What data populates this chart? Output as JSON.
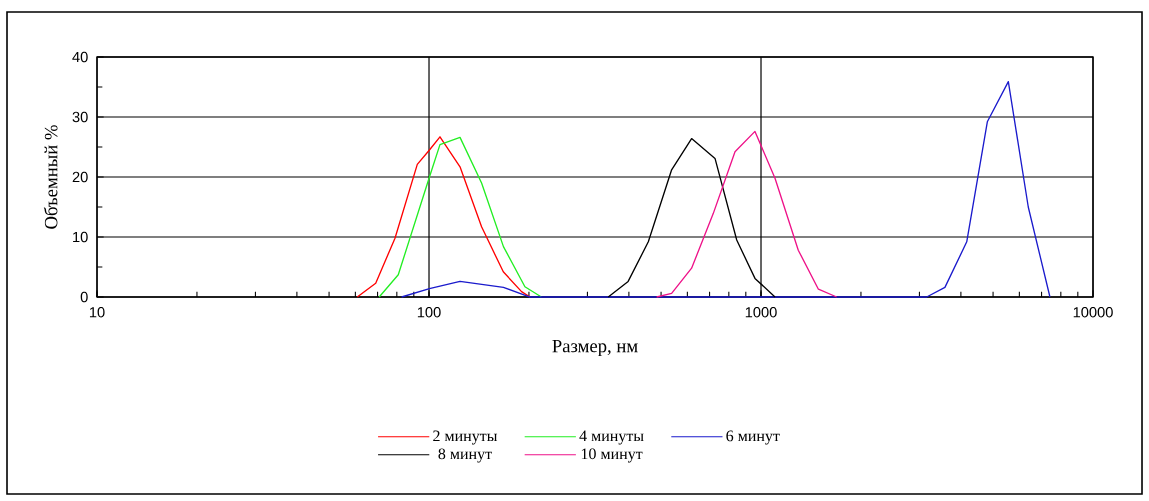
{
  "chart_data": {
    "type": "line",
    "xlabel": "Размер, нм",
    "ylabel": "Объемный %",
    "log": "x",
    "xlim": [
      10,
      10000
    ],
    "ylim": [
      0,
      40
    ],
    "xticks": [
      10,
      100,
      1000,
      10000
    ],
    "yticks": [
      0,
      {
        "value": 5,
        "label": null
      },
      10,
      {
        "value": 15,
        "label": null
      },
      20,
      {
        "value": 25,
        "label": null
      },
      30,
      {
        "value": 35,
        "label": null
      },
      40
    ],
    "grid": true,
    "legend": "bottom",
    "series": [
      {
        "name": "2 минуты",
        "color": "#ff0000",
        "x": [
          60.8,
          69.1,
          79,
          92.2,
          100.3,
          107.9,
          124,
          144,
          167.4,
          190,
          201.5
        ],
        "values": [
          0,
          2.3,
          9.8,
          22.1,
          24.5,
          26.7,
          21.7,
          11.7,
          4.2,
          0.9,
          0
        ]
      },
      {
        "name": "4 минуты",
        "color": "#22ee22",
        "x": [
          70.8,
          80.8,
          100.3,
          107.9,
          124,
          144,
          167.6,
          194.5,
          218
        ],
        "values": [
          0,
          3.7,
          20,
          25.4,
          26.6,
          19,
          8.4,
          1.7,
          0
        ]
      },
      {
        "name": "6 минут",
        "color": "#1a1acc",
        "x": [
          82.7,
          100.3,
          124,
          167.6,
          201.5,
          3155,
          3581,
          4166,
          4805,
          5559,
          6383,
          7419
        ],
        "values": [
          0,
          1.4,
          2.6,
          1.6,
          0,
          0,
          1.6,
          9.2,
          29.2,
          35.9,
          15,
          0
        ]
      },
      {
        "name": "8 минут",
        "color": "#000000",
        "x": [
          346.7,
          398,
          457.7,
          538,
          618,
          727,
          845,
          959,
          1102
        ],
        "values": [
          0,
          2.6,
          9.2,
          21.2,
          26.4,
          23.1,
          9.5,
          3.1,
          0
        ]
      },
      {
        "name": "10 минут",
        "color": "#ee1188",
        "x": [
          485,
          538,
          618,
          718,
          835,
          959,
          1102,
          1295,
          1489,
          1690
        ],
        "values": [
          0,
          0.6,
          4.8,
          13.9,
          24.2,
          27.6,
          19.8,
          7.8,
          1.3,
          0
        ]
      }
    ]
  }
}
